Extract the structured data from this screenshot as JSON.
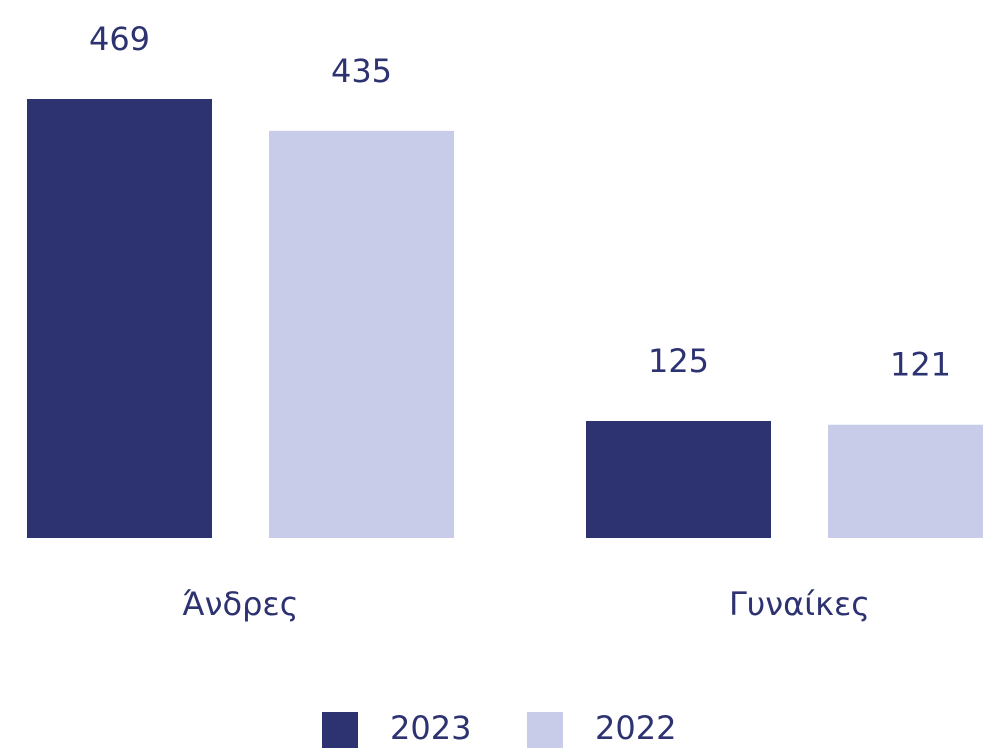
{
  "chart_data": {
    "type": "bar",
    "categories": [
      "Άνδρες",
      "Γυναίκες"
    ],
    "series": [
      {
        "name": "2023",
        "color": "#2d3270",
        "values": [
          469,
          125
        ]
      },
      {
        "name": "2022",
        "color": "#c8cce8",
        "values": [
          435,
          121
        ]
      }
    ]
  }
}
